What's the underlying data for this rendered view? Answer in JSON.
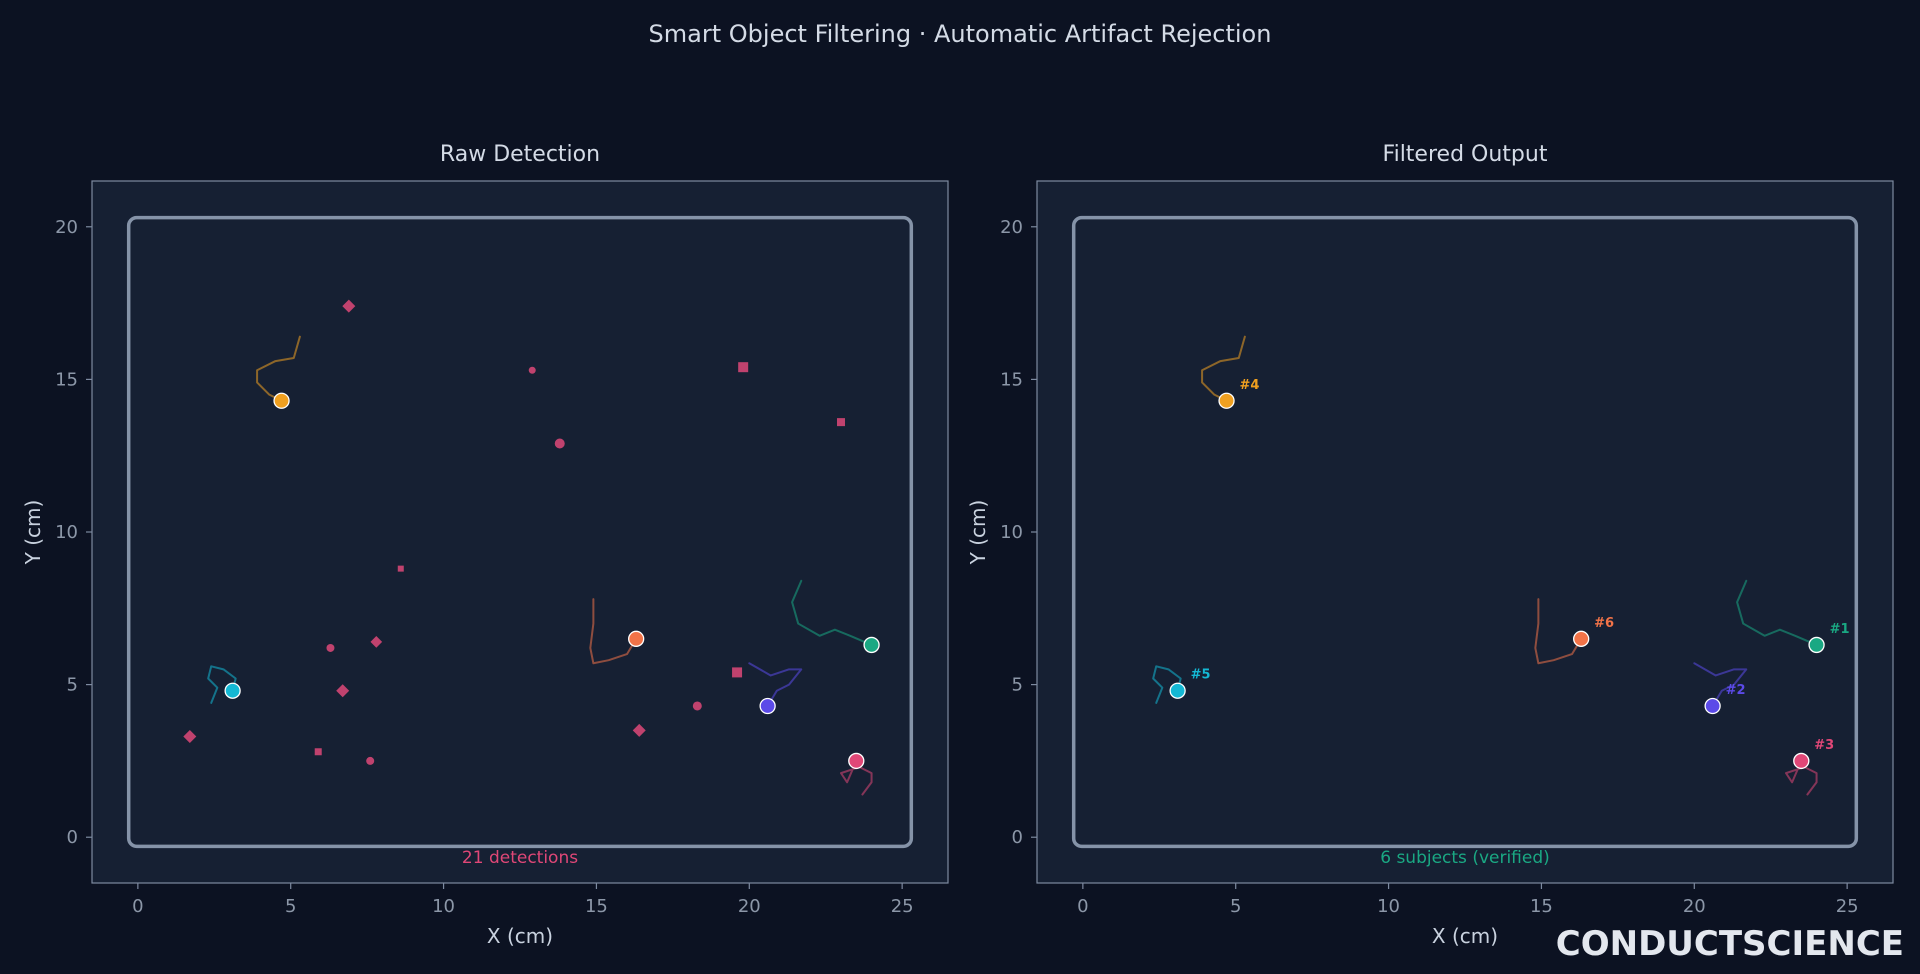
{
  "title": "Smart Object Filtering · Automatic Artifact Rejection",
  "brand": "CONDUCTSCIENCE",
  "colors": {
    "background": "#0c1222",
    "panel": "#162033",
    "artifact": "#c0426e",
    "subjects": [
      "#1aa883",
      "#5b4ae8",
      "#e04777",
      "#f0a020",
      "#14b8d4",
      "#f27348"
    ]
  },
  "chart_data": [
    {
      "type": "scatter",
      "title": "Raw Detection",
      "xlabel": "X (cm)",
      "ylabel": "Y (cm)",
      "xlim": [
        -1.5,
        26.5
      ],
      "ylim": [
        -1.5,
        21.5
      ],
      "xticks": [
        0,
        5,
        10,
        15,
        20,
        25
      ],
      "yticks": [
        0,
        5,
        10,
        15,
        20
      ],
      "arena": {
        "x": [
          -0.3,
          25.3
        ],
        "y": [
          -0.3,
          20.3
        ]
      },
      "annotation": "21 detections",
      "annotation_color": "#e04777",
      "artifacts": [
        {
          "shape": "diamond",
          "x": 6.9,
          "y": 17.4,
          "size": 5
        },
        {
          "shape": "square",
          "x": 19.8,
          "y": 15.4,
          "size": 5
        },
        {
          "shape": "circle",
          "x": 12.9,
          "y": 15.3,
          "size": 3.5
        },
        {
          "shape": "square",
          "x": 23.0,
          "y": 13.6,
          "size": 4
        },
        {
          "shape": "circle",
          "x": 13.8,
          "y": 12.9,
          "size": 5
        },
        {
          "shape": "square",
          "x": 8.6,
          "y": 8.8,
          "size": 3
        },
        {
          "shape": "circle",
          "x": 6.3,
          "y": 6.2,
          "size": 4
        },
        {
          "shape": "diamond",
          "x": 7.8,
          "y": 6.4,
          "size": 4.5
        },
        {
          "shape": "diamond",
          "x": 6.7,
          "y": 4.8,
          "size": 5
        },
        {
          "shape": "square",
          "x": 19.6,
          "y": 5.4,
          "size": 5
        },
        {
          "shape": "circle",
          "x": 18.3,
          "y": 4.3,
          "size": 4.5
        },
        {
          "shape": "diamond",
          "x": 16.4,
          "y": 3.5,
          "size": 5
        },
        {
          "shape": "diamond",
          "x": 1.7,
          "y": 3.3,
          "size": 5
        },
        {
          "shape": "square",
          "x": 5.9,
          "y": 2.8,
          "size": 3.5
        },
        {
          "shape": "circle",
          "x": 7.6,
          "y": 2.5,
          "size": 4
        }
      ],
      "show_ids": false
    },
    {
      "type": "scatter",
      "title": "Filtered Output",
      "xlabel": "X (cm)",
      "ylabel": "Y (cm)",
      "xlim": [
        -1.5,
        26.5
      ],
      "ylim": [
        -1.5,
        21.5
      ],
      "xticks": [
        0,
        5,
        10,
        15,
        20,
        25
      ],
      "yticks": [
        0,
        5,
        10,
        15,
        20
      ],
      "arena": {
        "x": [
          -0.3,
          25.3
        ],
        "y": [
          -0.3,
          20.3
        ]
      },
      "annotation": "6 subjects (verified)",
      "annotation_color": "#1aa883",
      "artifacts": [],
      "show_ids": true
    }
  ],
  "subjects": [
    {
      "id": "#1",
      "color": "#1aa883",
      "x": 24.0,
      "y": 6.3,
      "trail": [
        [
          21.7,
          8.4
        ],
        [
          21.4,
          7.7
        ],
        [
          21.6,
          7.0
        ],
        [
          22.3,
          6.6
        ],
        [
          22.8,
          6.8
        ],
        [
          23.3,
          6.6
        ],
        [
          24.0,
          6.3
        ]
      ]
    },
    {
      "id": "#2",
      "color": "#5b4ae8",
      "x": 20.6,
      "y": 4.3,
      "trail": [
        [
          20.0,
          5.7
        ],
        [
          20.7,
          5.3
        ],
        [
          21.3,
          5.5
        ],
        [
          21.7,
          5.5
        ],
        [
          21.3,
          5.0
        ],
        [
          20.9,
          4.8
        ],
        [
          20.6,
          4.3
        ]
      ]
    },
    {
      "id": "#3",
      "color": "#e04777",
      "x": 23.5,
      "y": 2.5,
      "trail": [
        [
          23.7,
          1.4
        ],
        [
          24.0,
          1.8
        ],
        [
          24.0,
          2.1
        ],
        [
          23.6,
          2.3
        ],
        [
          23.0,
          2.1
        ],
        [
          23.2,
          1.8
        ],
        [
          23.5,
          2.5
        ]
      ]
    },
    {
      "id": "#4",
      "color": "#f0a020",
      "x": 4.7,
      "y": 14.3,
      "trail": [
        [
          5.3,
          16.4
        ],
        [
          5.1,
          15.7
        ],
        [
          4.5,
          15.6
        ],
        [
          3.9,
          15.3
        ],
        [
          3.9,
          14.9
        ],
        [
          4.3,
          14.5
        ],
        [
          4.7,
          14.3
        ]
      ]
    },
    {
      "id": "#5",
      "color": "#14b8d4",
      "x": 3.1,
      "y": 4.8,
      "trail": [
        [
          2.4,
          4.4
        ],
        [
          2.6,
          4.9
        ],
        [
          2.3,
          5.2
        ],
        [
          2.4,
          5.6
        ],
        [
          2.8,
          5.5
        ],
        [
          3.2,
          5.2
        ],
        [
          3.1,
          4.8
        ]
      ]
    },
    {
      "id": "#6",
      "color": "#f27348",
      "x": 16.3,
      "y": 6.5,
      "trail": [
        [
          14.9,
          7.8
        ],
        [
          14.9,
          7.0
        ],
        [
          14.8,
          6.2
        ],
        [
          14.9,
          5.7
        ],
        [
          15.4,
          5.8
        ],
        [
          16.0,
          6.0
        ],
        [
          16.3,
          6.5
        ]
      ]
    }
  ]
}
